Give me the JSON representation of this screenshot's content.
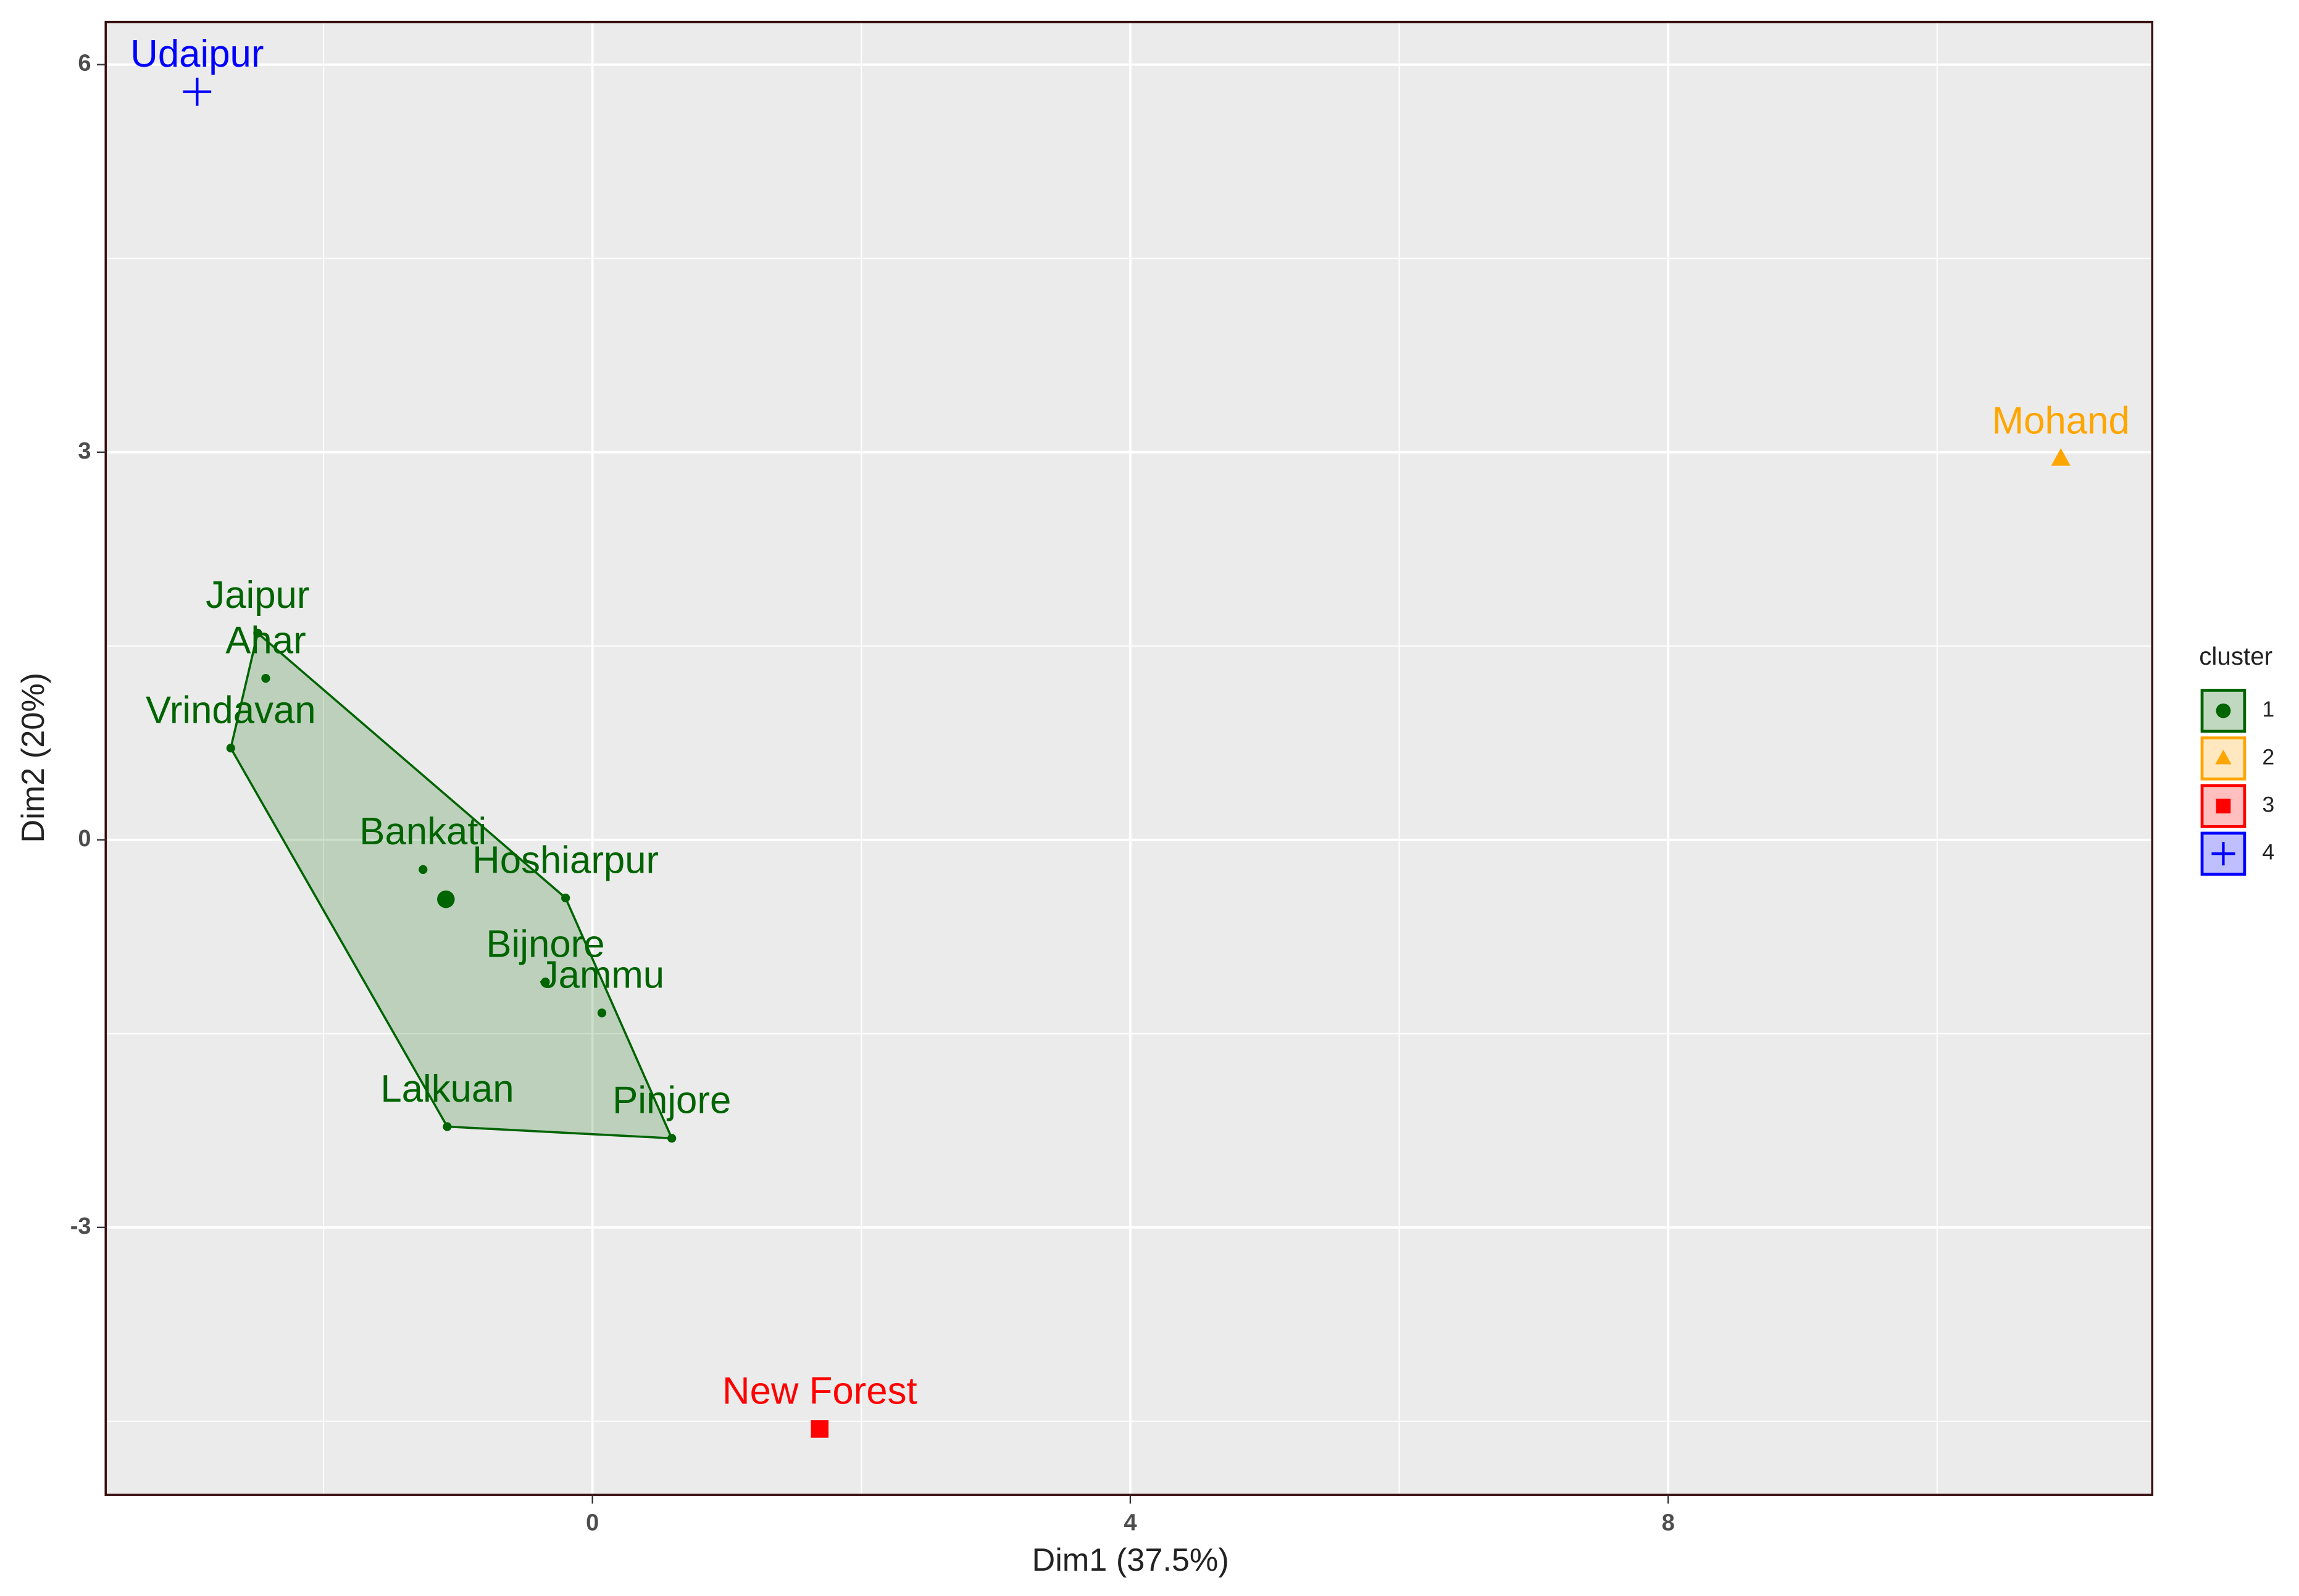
{
  "chart_data": {
    "type": "scatter",
    "xlabel": "Dim1 (37.5%)",
    "ylabel": "Dim2 (20%)",
    "xlim": [
      -3.62,
      11.6
    ],
    "ylim": [
      -5.07,
      6.33
    ],
    "xticks": [
      0,
      4,
      8
    ],
    "yticks": [
      -3,
      0,
      3,
      6
    ],
    "grid": true,
    "legend": {
      "title": "cluster",
      "position": "right"
    },
    "series": [
      {
        "name": "1",
        "color": "#006400",
        "shape": "circle",
        "hull": true,
        "labels": [
          "Jaipur",
          "Ahar",
          "Vrindavan",
          "Bankati",
          "Hoshiarpur",
          "Bijnore",
          "Jammu",
          "Lalkuan",
          "Pinjore"
        ],
        "x": [
          -2.49,
          -2.43,
          -2.69,
          -1.26,
          -0.2,
          -0.35,
          0.07,
          -1.08,
          0.59
        ],
        "values": [
          1.6,
          1.25,
          0.71,
          -0.23,
          -0.45,
          -1.1,
          -1.34,
          -2.22,
          -2.31
        ],
        "center": {
          "x": -1.09,
          "y": -0.46
        }
      },
      {
        "name": "2",
        "color": "#ffa500",
        "shape": "triangle",
        "labels": [
          "Mohand"
        ],
        "x": [
          10.92
        ],
        "values": [
          2.95
        ]
      },
      {
        "name": "3",
        "color": "#ff0000",
        "shape": "square",
        "labels": [
          "New Forest"
        ],
        "x": [
          1.69
        ],
        "values": [
          -4.56
        ]
      },
      {
        "name": "4",
        "color": "#0000ff",
        "shape": "plus",
        "labels": [
          "Udaipur"
        ],
        "x": [
          -2.94
        ],
        "values": [
          5.79
        ]
      }
    ]
  }
}
